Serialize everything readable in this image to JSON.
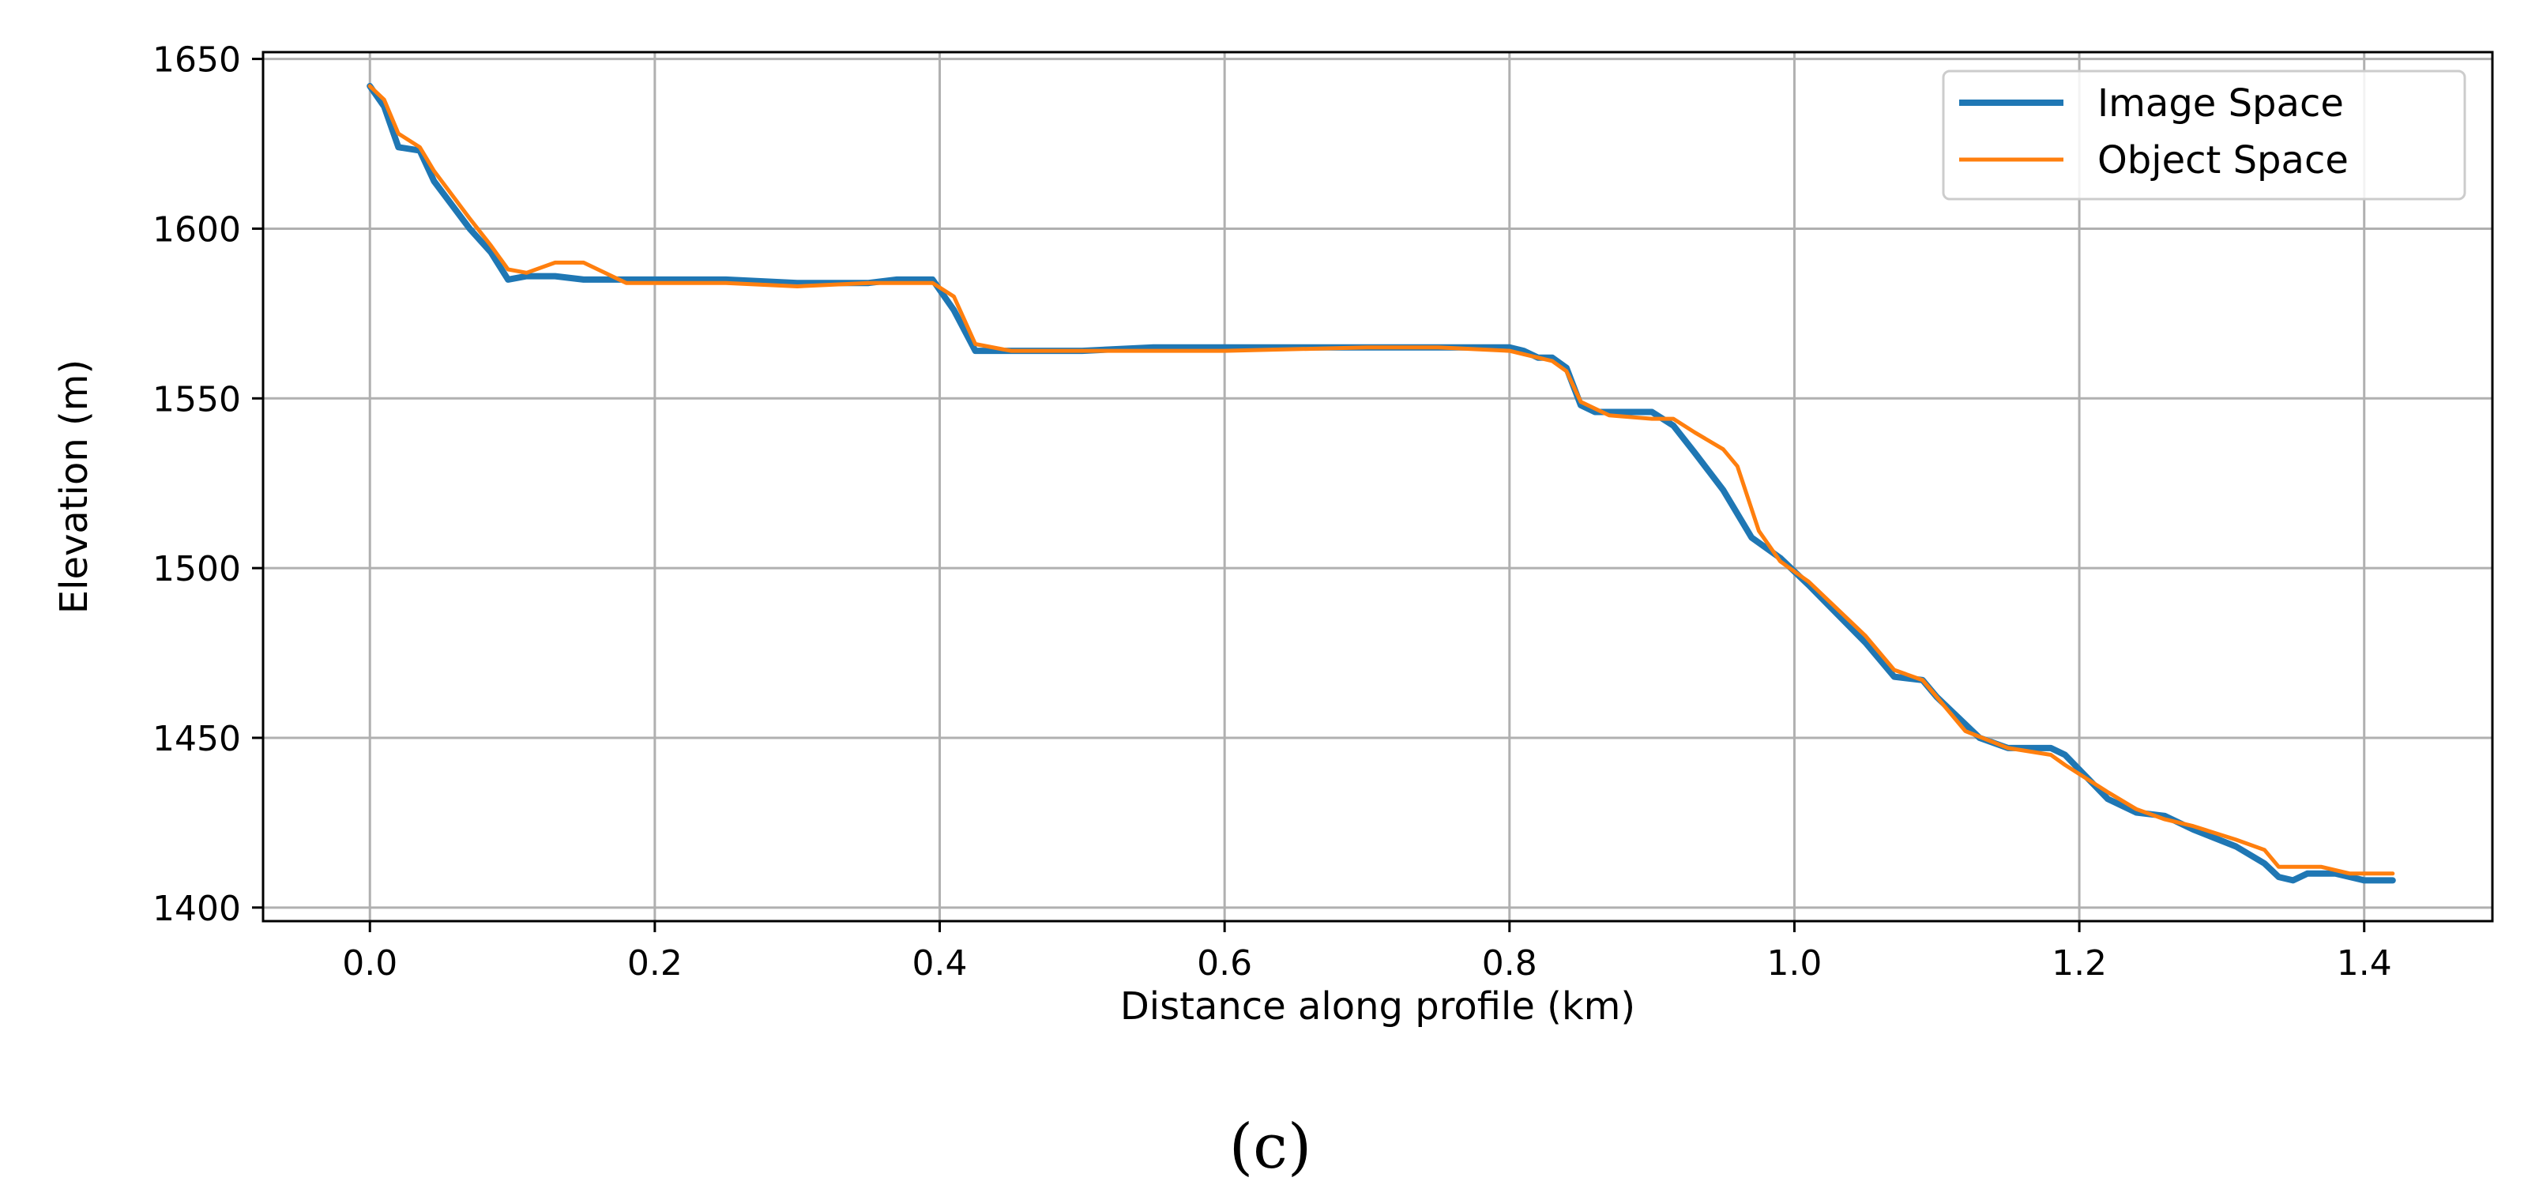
{
  "chart_data": {
    "type": "line",
    "title": "",
    "xlabel": "Distance along profile (km)",
    "ylabel": "Elevation (m)",
    "xlim": [
      -0.075,
      1.49
    ],
    "ylim": [
      1396,
      1652
    ],
    "xticks": [
      0.0,
      0.2,
      0.4,
      0.6,
      0.8,
      1.0,
      1.2,
      1.4
    ],
    "xtick_labels": [
      "0.0",
      "0.2",
      "0.4",
      "0.6",
      "0.8",
      "1.0",
      "1.2",
      "1.4"
    ],
    "yticks": [
      1400,
      1450,
      1500,
      1550,
      1600,
      1650
    ],
    "ytick_labels": [
      "1400",
      "1450",
      "1500",
      "1550",
      "1600",
      "1650"
    ],
    "grid": true,
    "legend_position": "top-right",
    "series": [
      {
        "name": "Image Space",
        "color": "#1f77b4",
        "points": [
          [
            0.0,
            1642
          ],
          [
            0.01,
            1636
          ],
          [
            0.02,
            1624
          ],
          [
            0.035,
            1623
          ],
          [
            0.045,
            1614
          ],
          [
            0.07,
            1600
          ],
          [
            0.085,
            1593
          ],
          [
            0.097,
            1585
          ],
          [
            0.11,
            1586
          ],
          [
            0.13,
            1586
          ],
          [
            0.15,
            1585
          ],
          [
            0.2,
            1585
          ],
          [
            0.25,
            1585
          ],
          [
            0.3,
            1584
          ],
          [
            0.35,
            1584
          ],
          [
            0.37,
            1585
          ],
          [
            0.395,
            1585
          ],
          [
            0.41,
            1576
          ],
          [
            0.425,
            1564
          ],
          [
            0.45,
            1564
          ],
          [
            0.5,
            1564
          ],
          [
            0.55,
            1565
          ],
          [
            0.6,
            1565
          ],
          [
            0.7,
            1565
          ],
          [
            0.75,
            1565
          ],
          [
            0.8,
            1565
          ],
          [
            0.81,
            1564
          ],
          [
            0.82,
            1562
          ],
          [
            0.83,
            1562
          ],
          [
            0.84,
            1559
          ],
          [
            0.85,
            1548
          ],
          [
            0.86,
            1546
          ],
          [
            0.9,
            1546
          ],
          [
            0.915,
            1542
          ],
          [
            0.93,
            1534
          ],
          [
            0.95,
            1523
          ],
          [
            0.97,
            1509
          ],
          [
            0.99,
            1503
          ],
          [
            1.01,
            1495
          ],
          [
            1.05,
            1478
          ],
          [
            1.07,
            1468
          ],
          [
            1.09,
            1467
          ],
          [
            1.1,
            1462
          ],
          [
            1.13,
            1450
          ],
          [
            1.15,
            1447
          ],
          [
            1.18,
            1447
          ],
          [
            1.19,
            1445
          ],
          [
            1.22,
            1432
          ],
          [
            1.24,
            1428
          ],
          [
            1.26,
            1427
          ],
          [
            1.28,
            1423
          ],
          [
            1.31,
            1418
          ],
          [
            1.33,
            1413
          ],
          [
            1.34,
            1409
          ],
          [
            1.35,
            1408
          ],
          [
            1.36,
            1410
          ],
          [
            1.38,
            1410
          ],
          [
            1.4,
            1408
          ],
          [
            1.42,
            1408
          ]
        ]
      },
      {
        "name": "Object Space",
        "color": "#ff7f0e",
        "points": [
          [
            0.0,
            1642
          ],
          [
            0.01,
            1638
          ],
          [
            0.02,
            1628
          ],
          [
            0.035,
            1624
          ],
          [
            0.045,
            1617
          ],
          [
            0.07,
            1603
          ],
          [
            0.085,
            1595
          ],
          [
            0.097,
            1588
          ],
          [
            0.11,
            1587
          ],
          [
            0.13,
            1590
          ],
          [
            0.15,
            1590
          ],
          [
            0.17,
            1586
          ],
          [
            0.18,
            1584
          ],
          [
            0.2,
            1584
          ],
          [
            0.25,
            1584
          ],
          [
            0.3,
            1583
          ],
          [
            0.35,
            1584
          ],
          [
            0.395,
            1584
          ],
          [
            0.41,
            1580
          ],
          [
            0.425,
            1566
          ],
          [
            0.45,
            1564
          ],
          [
            0.5,
            1564
          ],
          [
            0.55,
            1564
          ],
          [
            0.6,
            1564
          ],
          [
            0.7,
            1565
          ],
          [
            0.75,
            1565
          ],
          [
            0.8,
            1564
          ],
          [
            0.81,
            1563
          ],
          [
            0.82,
            1562
          ],
          [
            0.83,
            1561
          ],
          [
            0.84,
            1558
          ],
          [
            0.85,
            1549
          ],
          [
            0.87,
            1545
          ],
          [
            0.9,
            1544
          ],
          [
            0.915,
            1544
          ],
          [
            0.93,
            1540
          ],
          [
            0.95,
            1535
          ],
          [
            0.96,
            1530
          ],
          [
            0.975,
            1511
          ],
          [
            0.99,
            1502
          ],
          [
            1.01,
            1496
          ],
          [
            1.05,
            1480
          ],
          [
            1.07,
            1470
          ],
          [
            1.09,
            1467
          ],
          [
            1.1,
            1462
          ],
          [
            1.12,
            1452
          ],
          [
            1.15,
            1447
          ],
          [
            1.18,
            1445
          ],
          [
            1.19,
            1442
          ],
          [
            1.22,
            1434
          ],
          [
            1.24,
            1429
          ],
          [
            1.26,
            1426
          ],
          [
            1.28,
            1424
          ],
          [
            1.31,
            1420
          ],
          [
            1.33,
            1417
          ],
          [
            1.34,
            1412
          ],
          [
            1.37,
            1412
          ],
          [
            1.39,
            1410
          ],
          [
            1.42,
            1410
          ]
        ]
      }
    ]
  },
  "caption": "(c)"
}
